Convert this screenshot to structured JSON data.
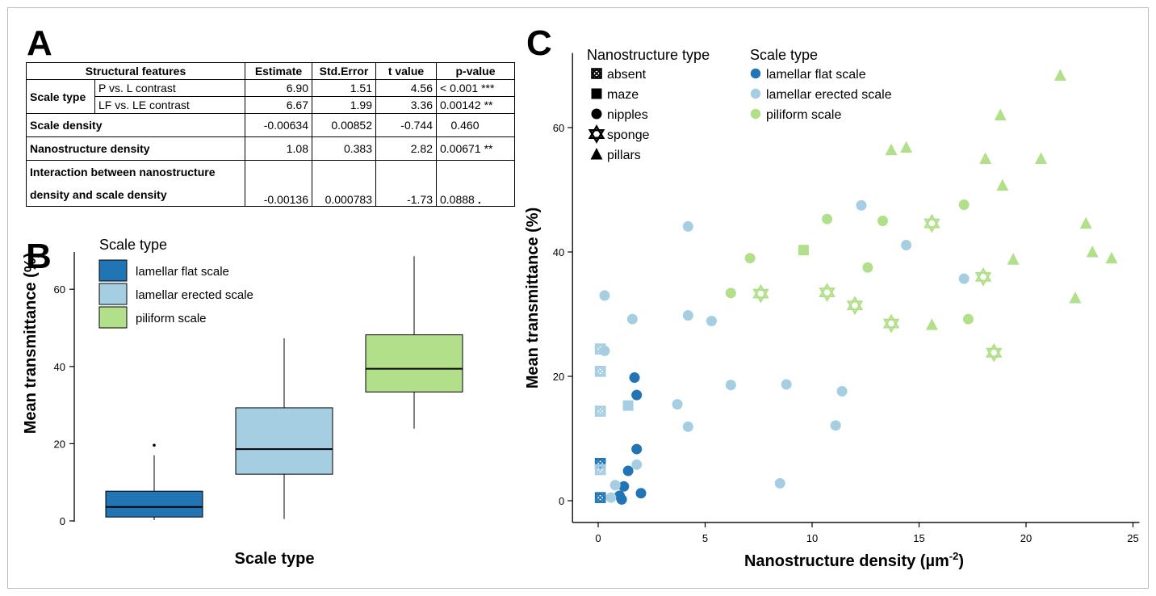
{
  "panels": {
    "a": "A",
    "b": "B",
    "c": "C"
  },
  "table": {
    "headers": [
      "Structural features",
      "Estimate",
      "Std.Error",
      "t value",
      "p-value"
    ],
    "scale_type_label": "Scale type",
    "rows": [
      {
        "feature": "P vs. L contrast",
        "estimate": "6.90",
        "se": "1.51",
        "t": "4.56",
        "p": "< 0.001",
        "sig": "***"
      },
      {
        "feature": "LF  vs. LE contrast",
        "estimate": "6.67",
        "se": "1.99",
        "t": "3.36",
        "p": "0.00142",
        "sig": "**"
      },
      {
        "feature": "Scale density",
        "estimate": "-0.00634",
        "se": "0.00852",
        "t": "-0.744",
        "p": "0.460",
        "sig": ""
      },
      {
        "feature": "Nanostructure density",
        "estimate": "1.08",
        "se": "0.383",
        "t": "2.82",
        "p": "0.00671",
        "sig": "**"
      },
      {
        "feature": "Interaction between nanostructure",
        "feature2": "density and scale density",
        "estimate": "-0.00136",
        "se": "0.000783",
        "t": "-1.73",
        "p": "0.0888",
        "sig": "."
      }
    ]
  },
  "colors": {
    "lamellar_flat": "#2275b4",
    "lamellar_erected": "#a6cee3",
    "piliform": "#b2df8a"
  },
  "chart_data": [
    {
      "type": "box",
      "ylabel": "Mean transmittance (%)",
      "xlabel": "Scale type",
      "ylim": [
        0,
        70
      ],
      "yticks": [
        0,
        20,
        40,
        60
      ],
      "legend_title": "Scale type",
      "legend_placement": "top-left",
      "categories": [
        "lamellar flat scale",
        "lamellar erected scale",
        "piliform scale"
      ],
      "boxes": [
        {
          "name": "lamellar flat scale",
          "min": 0.2,
          "q1": 1.0,
          "median": 3.6,
          "q3": 7.7,
          "max": 17.0,
          "outliers": [
            19.6
          ]
        },
        {
          "name": "lamellar erected scale",
          "min": 0.5,
          "q1": 12.1,
          "median": 18.6,
          "q3": 29.3,
          "max": 47.3,
          "outliers": []
        },
        {
          "name": "piliform scale",
          "min": 23.9,
          "q1": 33.4,
          "median": 39.4,
          "q3": 48.2,
          "max": 68.6,
          "outliers": []
        }
      ]
    },
    {
      "type": "scatter",
      "xlabel": "Nanostructure density (µm",
      "xlabel_sup": "-2",
      "xlabel_end": ")",
      "ylabel": "Mean transmittance (%)",
      "xlim": [
        -1.2,
        25.3
      ],
      "ylim": [
        -3.5,
        72
      ],
      "xticks": [
        0,
        5,
        10,
        15,
        20,
        25
      ],
      "yticks": [
        0,
        20,
        40,
        60
      ],
      "legend_nano_title": "Nanostructure type",
      "legend_nano": [
        "absent",
        "maze",
        "nipples",
        "sponge",
        "pillars"
      ],
      "legend_scale_title": "Scale type",
      "legend_scale": [
        "lamellar flat scale",
        "lamellar erected scale",
        "piliform scale"
      ],
      "points": [
        {
          "x": 0.1,
          "y": 0.5,
          "shape": "absent",
          "group": "lamellar flat scale"
        },
        {
          "x": 0.1,
          "y": 6.0,
          "shape": "absent",
          "group": "lamellar flat scale"
        },
        {
          "x": 0.1,
          "y": 5.0,
          "shape": "absent",
          "group": "lamellar erected scale"
        },
        {
          "x": 0.1,
          "y": 14.4,
          "shape": "absent",
          "group": "lamellar erected scale"
        },
        {
          "x": 0.1,
          "y": 20.8,
          "shape": "absent",
          "group": "lamellar erected scale"
        },
        {
          "x": 0.1,
          "y": 24.4,
          "shape": "absent",
          "group": "lamellar erected scale"
        },
        {
          "x": 1.0,
          "y": 0.8,
          "shape": "nipples",
          "group": "lamellar flat scale"
        },
        {
          "x": 1.1,
          "y": 0.2,
          "shape": "nipples",
          "group": "lamellar flat scale"
        },
        {
          "x": 1.2,
          "y": 2.3,
          "shape": "nipples",
          "group": "lamellar flat scale"
        },
        {
          "x": 1.4,
          "y": 4.8,
          "shape": "nipples",
          "group": "lamellar flat scale"
        },
        {
          "x": 1.8,
          "y": 8.3,
          "shape": "nipples",
          "group": "lamellar flat scale"
        },
        {
          "x": 1.8,
          "y": 17.0,
          "shape": "nipples",
          "group": "lamellar flat scale"
        },
        {
          "x": 1.7,
          "y": 19.8,
          "shape": "nipples",
          "group": "lamellar flat scale"
        },
        {
          "x": 2.0,
          "y": 1.2,
          "shape": "nipples",
          "group": "lamellar flat scale"
        },
        {
          "x": 0.3,
          "y": 24.1,
          "shape": "nipples",
          "group": "lamellar erected scale"
        },
        {
          "x": 0.3,
          "y": 33.0,
          "shape": "nipples",
          "group": "lamellar erected scale"
        },
        {
          "x": 0.6,
          "y": 0.5,
          "shape": "nipples",
          "group": "lamellar erected scale"
        },
        {
          "x": 0.8,
          "y": 2.5,
          "shape": "nipples",
          "group": "lamellar erected scale"
        },
        {
          "x": 1.6,
          "y": 29.2,
          "shape": "nipples",
          "group": "lamellar erected scale"
        },
        {
          "x": 1.8,
          "y": 5.8,
          "shape": "nipples",
          "group": "lamellar erected scale"
        },
        {
          "x": 3.7,
          "y": 15.5,
          "shape": "nipples",
          "group": "lamellar erected scale"
        },
        {
          "x": 4.2,
          "y": 44.1,
          "shape": "nipples",
          "group": "lamellar erected scale"
        },
        {
          "x": 4.2,
          "y": 29.8,
          "shape": "nipples",
          "group": "lamellar erected scale"
        },
        {
          "x": 4.2,
          "y": 11.9,
          "shape": "nipples",
          "group": "lamellar erected scale"
        },
        {
          "x": 5.3,
          "y": 28.9,
          "shape": "nipples",
          "group": "lamellar erected scale"
        },
        {
          "x": 6.2,
          "y": 18.6,
          "shape": "nipples",
          "group": "lamellar erected scale"
        },
        {
          "x": 8.5,
          "y": 2.8,
          "shape": "nipples",
          "group": "lamellar erected scale"
        },
        {
          "x": 8.8,
          "y": 18.7,
          "shape": "nipples",
          "group": "lamellar erected scale"
        },
        {
          "x": 11.1,
          "y": 12.1,
          "shape": "nipples",
          "group": "lamellar erected scale"
        },
        {
          "x": 11.4,
          "y": 17.6,
          "shape": "nipples",
          "group": "lamellar erected scale"
        },
        {
          "x": 12.3,
          "y": 47.5,
          "shape": "nipples",
          "group": "lamellar erected scale"
        },
        {
          "x": 14.4,
          "y": 41.1,
          "shape": "nipples",
          "group": "lamellar erected scale"
        },
        {
          "x": 17.1,
          "y": 35.7,
          "shape": "nipples",
          "group": "lamellar erected scale"
        },
        {
          "x": 1.4,
          "y": 15.3,
          "shape": "maze",
          "group": "lamellar erected scale"
        },
        {
          "x": 9.6,
          "y": 40.3,
          "shape": "maze",
          "group": "piliform scale"
        },
        {
          "x": 6.2,
          "y": 33.4,
          "shape": "nipples",
          "group": "piliform scale"
        },
        {
          "x": 7.1,
          "y": 39.0,
          "shape": "nipples",
          "group": "piliform scale"
        },
        {
          "x": 10.7,
          "y": 45.3,
          "shape": "nipples",
          "group": "piliform scale"
        },
        {
          "x": 12.6,
          "y": 37.5,
          "shape": "nipples",
          "group": "piliform scale"
        },
        {
          "x": 13.3,
          "y": 45.0,
          "shape": "nipples",
          "group": "piliform scale"
        },
        {
          "x": 17.1,
          "y": 47.6,
          "shape": "nipples",
          "group": "piliform scale"
        },
        {
          "x": 17.3,
          "y": 29.2,
          "shape": "nipples",
          "group": "piliform scale"
        },
        {
          "x": 7.6,
          "y": 33.3,
          "shape": "sponge",
          "group": "piliform scale"
        },
        {
          "x": 10.7,
          "y": 33.5,
          "shape": "sponge",
          "group": "piliform scale"
        },
        {
          "x": 12.0,
          "y": 31.4,
          "shape": "sponge",
          "group": "piliform scale"
        },
        {
          "x": 13.7,
          "y": 28.5,
          "shape": "sponge",
          "group": "piliform scale"
        },
        {
          "x": 15.6,
          "y": 44.6,
          "shape": "sponge",
          "group": "piliform scale"
        },
        {
          "x": 18.0,
          "y": 36.0,
          "shape": "sponge",
          "group": "piliform scale"
        },
        {
          "x": 18.5,
          "y": 23.8,
          "shape": "sponge",
          "group": "piliform scale"
        },
        {
          "x": 13.7,
          "y": 56.4,
          "shape": "pillars",
          "group": "piliform scale"
        },
        {
          "x": 14.4,
          "y": 56.8,
          "shape": "pillars",
          "group": "piliform scale"
        },
        {
          "x": 15.6,
          "y": 28.3,
          "shape": "pillars",
          "group": "piliform scale"
        },
        {
          "x": 18.1,
          "y": 55.0,
          "shape": "pillars",
          "group": "piliform scale"
        },
        {
          "x": 18.8,
          "y": 62.0,
          "shape": "pillars",
          "group": "piliform scale"
        },
        {
          "x": 18.9,
          "y": 50.7,
          "shape": "pillars",
          "group": "piliform scale"
        },
        {
          "x": 19.4,
          "y": 38.8,
          "shape": "pillars",
          "group": "piliform scale"
        },
        {
          "x": 20.7,
          "y": 55.0,
          "shape": "pillars",
          "group": "piliform scale"
        },
        {
          "x": 21.6,
          "y": 68.4,
          "shape": "pillars",
          "group": "piliform scale"
        },
        {
          "x": 22.3,
          "y": 32.6,
          "shape": "pillars",
          "group": "piliform scale"
        },
        {
          "x": 22.8,
          "y": 44.6,
          "shape": "pillars",
          "group": "piliform scale"
        },
        {
          "x": 23.1,
          "y": 40.0,
          "shape": "pillars",
          "group": "piliform scale"
        },
        {
          "x": 24.0,
          "y": 39.0,
          "shape": "pillars",
          "group": "piliform scale"
        }
      ]
    }
  ]
}
